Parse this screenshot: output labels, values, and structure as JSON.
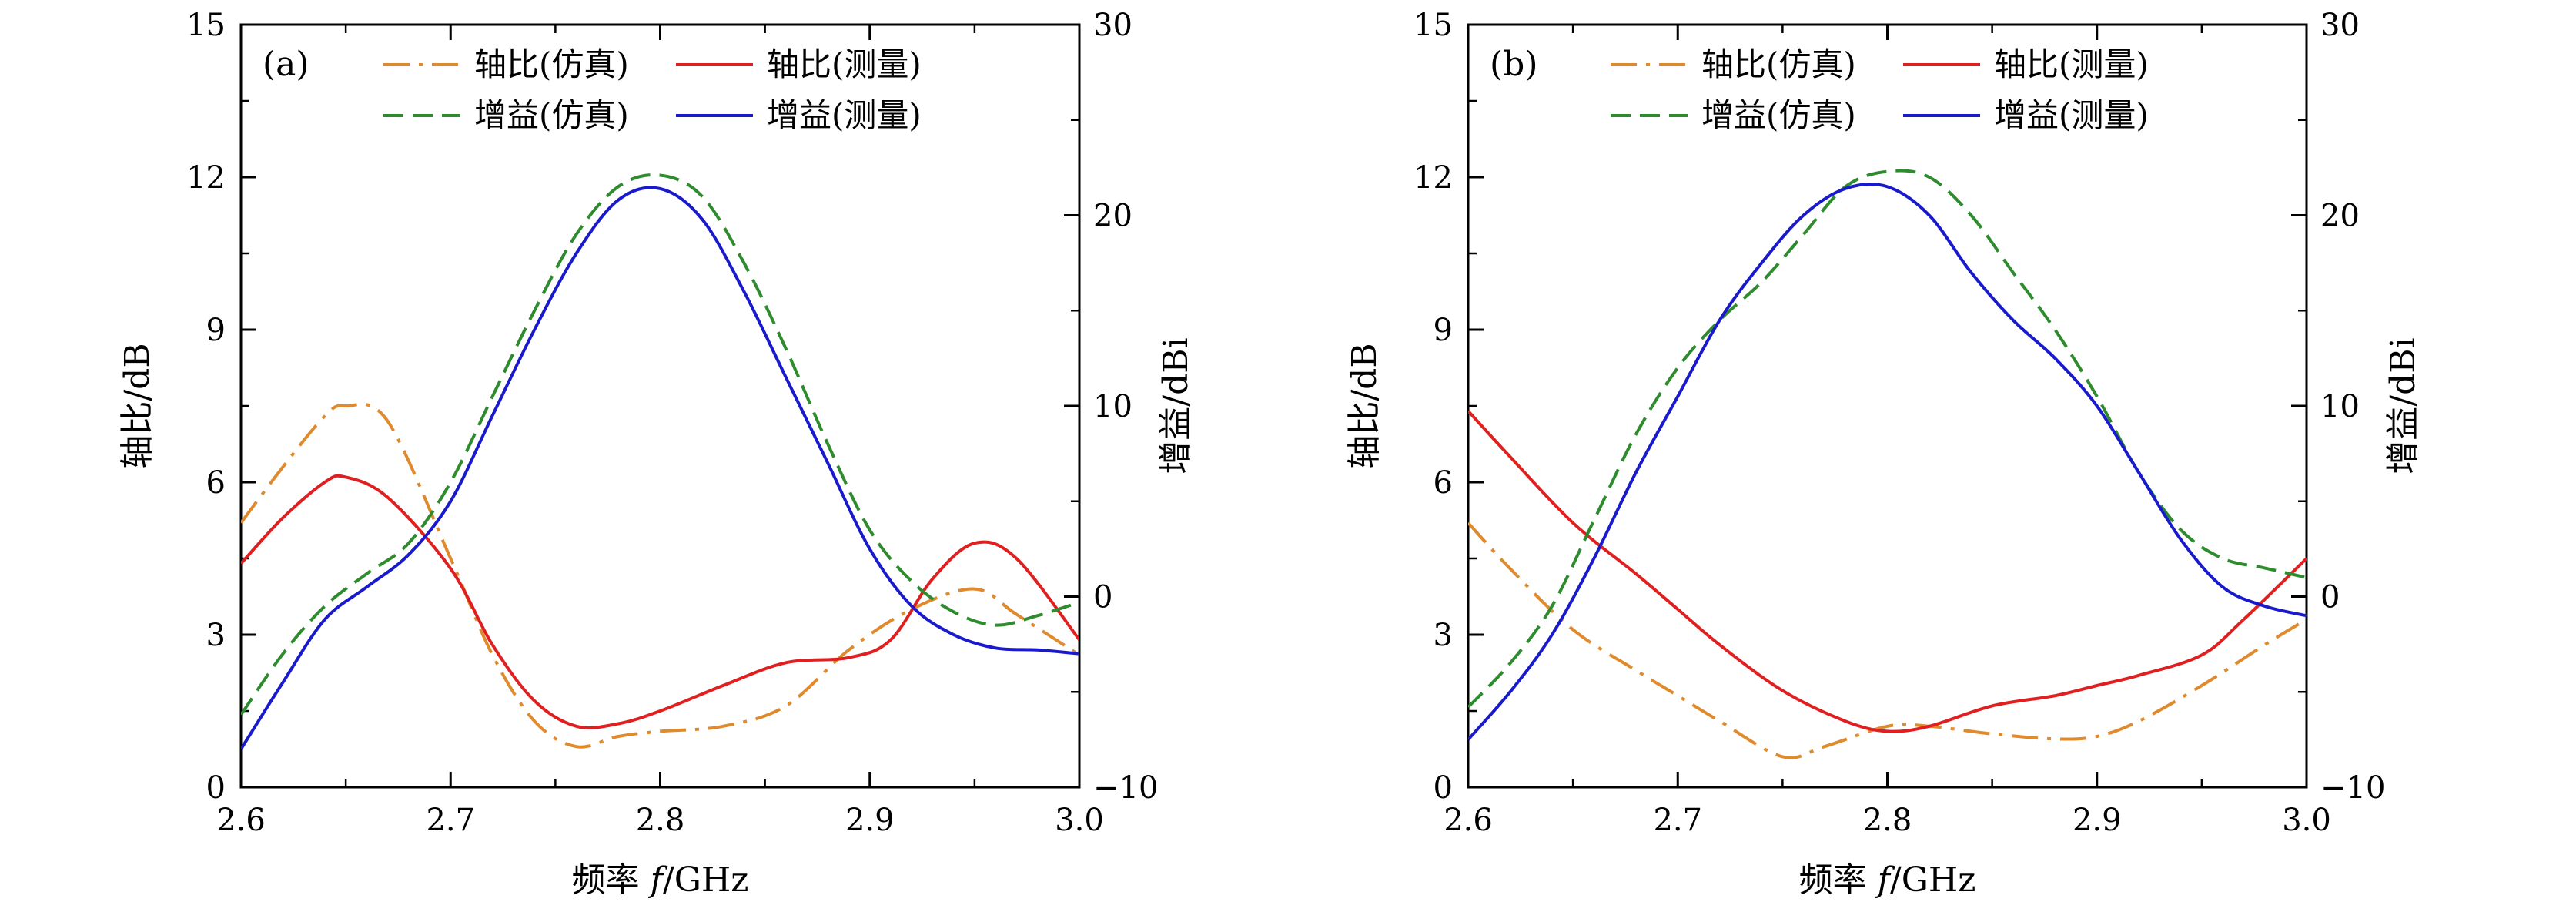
{
  "chart_data": [
    {
      "type": "line",
      "panel_label": "(a)",
      "xlabel": "频率 f/GHz",
      "ylabel_left": "轴比/dB",
      "ylabel_right": "增益/dBi",
      "xlim": [
        2.6,
        3.0
      ],
      "ylim_left": [
        0,
        15
      ],
      "ylim_right": [
        -10,
        30
      ],
      "xticks": [
        "2.6",
        "2.7",
        "2.8",
        "2.9",
        "3.0"
      ],
      "yticks_left": [
        "0",
        "3",
        "6",
        "9",
        "12",
        "15"
      ],
      "yticks_right": [
        "−10",
        "0",
        "10",
        "20",
        "30"
      ],
      "legend_placement": "top",
      "grid": false,
      "series": [
        {
          "name": "轴比(仿真)",
          "axis": "left",
          "style": "dashdot",
          "color": "#E08A2E",
          "x": [
            2.6,
            2.62,
            2.64,
            2.65,
            2.67,
            2.7,
            2.72,
            2.74,
            2.76,
            2.78,
            2.8,
            2.83,
            2.86,
            2.89,
            2.92,
            2.95,
            2.97,
            3.0
          ],
          "y": [
            5.2,
            6.3,
            7.3,
            7.5,
            7.2,
            4.5,
            2.6,
            1.3,
            0.8,
            1.0,
            1.1,
            1.2,
            1.6,
            2.7,
            3.5,
            3.9,
            3.4,
            2.6
          ]
        },
        {
          "name": "轴比(测量)",
          "axis": "left",
          "style": "solid",
          "color": "#E02020",
          "x": [
            2.6,
            2.62,
            2.64,
            2.65,
            2.67,
            2.7,
            2.72,
            2.74,
            2.76,
            2.78,
            2.8,
            2.83,
            2.86,
            2.89,
            2.91,
            2.93,
            2.95,
            2.97,
            3.0
          ],
          "y": [
            4.4,
            5.3,
            6.0,
            6.1,
            5.7,
            4.3,
            2.8,
            1.7,
            1.2,
            1.25,
            1.5,
            2.0,
            2.45,
            2.55,
            2.9,
            4.1,
            4.8,
            4.5,
            2.9
          ]
        },
        {
          "name": "增益(仿真)",
          "axis": "right",
          "style": "dashed",
          "color": "#2E8B2E",
          "x": [
            2.6,
            2.62,
            2.64,
            2.66,
            2.68,
            2.7,
            2.72,
            2.74,
            2.76,
            2.78,
            2.8,
            2.82,
            2.84,
            2.86,
            2.88,
            2.9,
            2.92,
            2.94,
            2.96,
            2.98,
            3.0
          ],
          "y": [
            -6.2,
            -3.0,
            -0.5,
            1.2,
            2.8,
            6.0,
            10.5,
            15.0,
            19.0,
            21.5,
            22.1,
            21.0,
            17.5,
            13.0,
            8.0,
            3.5,
            0.8,
            -0.8,
            -1.5,
            -1.0,
            -0.3
          ]
        },
        {
          "name": "增益(测量)",
          "axis": "right",
          "style": "solid",
          "color": "#1A1ACD",
          "x": [
            2.6,
            2.62,
            2.64,
            2.66,
            2.68,
            2.7,
            2.72,
            2.74,
            2.76,
            2.78,
            2.8,
            2.82,
            2.84,
            2.86,
            2.88,
            2.9,
            2.92,
            2.94,
            2.96,
            2.98,
            3.0
          ],
          "y": [
            -8.0,
            -4.5,
            -1.2,
            0.5,
            2.2,
            5.0,
            9.5,
            14.0,
            18.0,
            20.8,
            21.4,
            19.8,
            16.0,
            11.5,
            7.0,
            2.5,
            -0.5,
            -2.0,
            -2.7,
            -2.8,
            -3.0
          ]
        }
      ]
    },
    {
      "type": "line",
      "panel_label": "(b)",
      "xlabel": "频率 f/GHz",
      "ylabel_left": "轴比/dB",
      "ylabel_right": "增益/dBi",
      "xlim": [
        2.6,
        3.0
      ],
      "ylim_left": [
        0,
        15
      ],
      "ylim_right": [
        -10,
        30
      ],
      "xticks": [
        "2.6",
        "2.7",
        "2.8",
        "2.9",
        "3.0"
      ],
      "yticks_left": [
        "0",
        "3",
        "6",
        "9",
        "12",
        "15"
      ],
      "yticks_right": [
        "−10",
        "0",
        "10",
        "20",
        "30"
      ],
      "legend_placement": "top",
      "grid": false,
      "series": [
        {
          "name": "轴比(仿真)",
          "axis": "left",
          "style": "dashdot",
          "color": "#E08A2E",
          "x": [
            2.6,
            2.62,
            2.65,
            2.68,
            2.7,
            2.72,
            2.75,
            2.77,
            2.8,
            2.82,
            2.85,
            2.88,
            2.9,
            2.92,
            2.95,
            2.98,
            3.0
          ],
          "y": [
            5.2,
            4.3,
            3.1,
            2.3,
            1.8,
            1.3,
            0.6,
            0.8,
            1.2,
            1.2,
            1.05,
            0.95,
            1.0,
            1.3,
            2.0,
            2.8,
            3.3
          ]
        },
        {
          "name": "轴比(测量)",
          "axis": "left",
          "style": "solid",
          "color": "#E02020",
          "x": [
            2.6,
            2.62,
            2.65,
            2.68,
            2.7,
            2.72,
            2.75,
            2.78,
            2.8,
            2.82,
            2.85,
            2.88,
            2.9,
            2.92,
            2.95,
            2.97,
            3.0
          ],
          "y": [
            7.4,
            6.5,
            5.2,
            4.2,
            3.5,
            2.8,
            1.9,
            1.3,
            1.1,
            1.2,
            1.6,
            1.8,
            2.0,
            2.2,
            2.6,
            3.3,
            4.5
          ]
        },
        {
          "name": "增益(仿真)",
          "axis": "right",
          "style": "dashed",
          "color": "#2E8B2E",
          "x": [
            2.6,
            2.62,
            2.64,
            2.66,
            2.68,
            2.7,
            2.72,
            2.74,
            2.76,
            2.78,
            2.8,
            2.82,
            2.84,
            2.86,
            2.88,
            2.9,
            2.92,
            2.94,
            2.96,
            2.98,
            3.0
          ],
          "y": [
            -5.8,
            -3.5,
            -0.5,
            4.0,
            8.5,
            12.0,
            14.5,
            16.5,
            19.0,
            21.5,
            22.3,
            22.0,
            20.0,
            17.0,
            14.0,
            10.5,
            6.5,
            3.5,
            2.0,
            1.5,
            1.0
          ]
        },
        {
          "name": "增益(测量)",
          "axis": "right",
          "style": "solid",
          "color": "#1A1ACD",
          "x": [
            2.6,
            2.62,
            2.64,
            2.66,
            2.68,
            2.7,
            2.72,
            2.74,
            2.76,
            2.78,
            2.8,
            2.82,
            2.84,
            2.86,
            2.88,
            2.9,
            2.92,
            2.94,
            2.96,
            2.98,
            3.0
          ],
          "y": [
            -7.5,
            -5.0,
            -2.0,
            2.0,
            6.5,
            10.5,
            14.5,
            17.5,
            20.0,
            21.4,
            21.5,
            20.0,
            17.0,
            14.5,
            12.5,
            10.0,
            6.5,
            3.0,
            0.5,
            -0.5,
            -1.0
          ]
        }
      ]
    }
  ]
}
